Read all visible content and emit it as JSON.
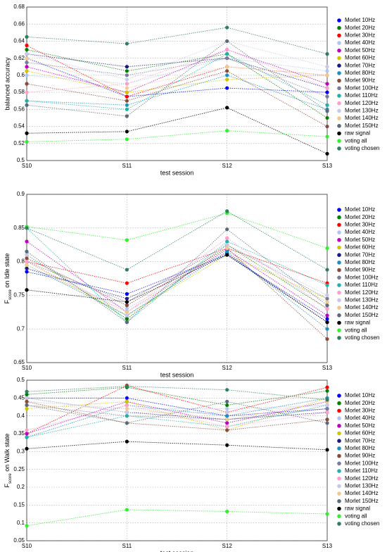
{
  "chart_data": [
    {
      "type": "line",
      "xlabel": "test session",
      "ylabel": "balanced accuracy",
      "grid": true,
      "legend": "outside right",
      "categories": [
        "S10",
        "S11",
        "S12",
        "S13"
      ],
      "ylim": [
        0.5,
        0.68
      ],
      "yticks": [
        0.5,
        0.52,
        0.54,
        0.56,
        0.58,
        0.6,
        0.62,
        0.64,
        0.66,
        0.68
      ],
      "series": [
        {
          "name": "Morlet 10Hz",
          "color": "#0000ff",
          "values": [
            0.62,
            0.575,
            0.585,
            0.58
          ]
        },
        {
          "name": "Morlet 20Hz",
          "color": "#007f00",
          "values": [
            0.63,
            0.605,
            0.625,
            0.55
          ]
        },
        {
          "name": "Morlet 30Hz",
          "color": "#ff0000",
          "values": [
            0.635,
            0.575,
            0.61,
            0.6
          ]
        },
        {
          "name": "Morlet 40Hz",
          "color": "#b0c4ee",
          "values": [
            0.6,
            0.59,
            0.62,
            0.605
          ]
        },
        {
          "name": "Morlet 50Hz",
          "color": "#bf00bf",
          "values": [
            0.61,
            0.58,
            0.63,
            0.59
          ]
        },
        {
          "name": "Morlet 60Hz",
          "color": "#d4c400",
          "values": [
            0.605,
            0.58,
            0.595,
            0.6
          ]
        },
        {
          "name": "Morlet 70Hz",
          "color": "#1a1a80",
          "values": [
            0.625,
            0.61,
            0.62,
            0.585
          ]
        },
        {
          "name": "Morlet 80Hz",
          "color": "#1f8fbf",
          "values": [
            0.57,
            0.565,
            0.6,
            0.56
          ]
        },
        {
          "name": "Morlet 90Hz",
          "color": "#8b4a3a",
          "values": [
            0.59,
            0.57,
            0.605,
            0.54
          ]
        },
        {
          "name": "Morlet 100Hz",
          "color": "#7a7a9a",
          "values": [
            0.615,
            0.6,
            0.62,
            0.575
          ]
        },
        {
          "name": "Morlet 110Hz",
          "color": "#20b2aa",
          "values": [
            0.57,
            0.56,
            0.625,
            0.565
          ]
        },
        {
          "name": "Morlet 120Hz",
          "color": "#ff9ecd",
          "values": [
            0.58,
            0.59,
            0.63,
            0.585
          ]
        },
        {
          "name": "Morlet 130Hz",
          "color": "#c8c8e8",
          "values": [
            0.625,
            0.595,
            0.64,
            0.61
          ]
        },
        {
          "name": "Morlet 140Hz",
          "color": "#f0c890",
          "values": [
            0.62,
            0.585,
            0.61,
            0.6
          ]
        },
        {
          "name": "Morlet 150Hz",
          "color": "#5a6a7a",
          "values": [
            0.565,
            0.552,
            0.64,
            0.558
          ]
        },
        {
          "name": "raw signal",
          "color": "#000000",
          "values": [
            0.532,
            0.534,
            0.562,
            0.508
          ]
        },
        {
          "name": "voting all",
          "color": "#33ee33",
          "values": [
            0.522,
            0.525,
            0.535,
            0.528
          ]
        },
        {
          "name": "voting chosen",
          "color": "#2f7f5f",
          "values": [
            0.645,
            0.637,
            0.656,
            0.625
          ]
        }
      ]
    },
    {
      "type": "line",
      "xlabel": "test session",
      "ylabel": {
        "main": "F",
        "subscript": "score",
        "rest": " on Idle state"
      },
      "grid": true,
      "legend": "outside right",
      "categories": [
        "S10",
        "S11",
        "S12",
        "S13"
      ],
      "ylim": [
        0.65,
        0.9
      ],
      "yticks": [
        0.65,
        0.7,
        0.75,
        0.8,
        0.85,
        0.9
      ],
      "series": [
        {
          "name": "Morlet 10Hz",
          "color": "#0000ff",
          "values": [
            0.785,
            0.752,
            0.81,
            0.715
          ]
        },
        {
          "name": "Morlet 20Hz",
          "color": "#007f00",
          "values": [
            0.81,
            0.715,
            0.825,
            0.73
          ]
        },
        {
          "name": "Morlet 30Hz",
          "color": "#ff0000",
          "values": [
            0.8,
            0.768,
            0.82,
            0.768
          ]
        },
        {
          "name": "Morlet 40Hz",
          "color": "#b0c4ee",
          "values": [
            0.79,
            0.73,
            0.815,
            0.74
          ]
        },
        {
          "name": "Morlet 50Hz",
          "color": "#bf00bf",
          "values": [
            0.83,
            0.725,
            0.818,
            0.72
          ]
        },
        {
          "name": "Morlet 60Hz",
          "color": "#d4c400",
          "values": [
            0.8,
            0.72,
            0.81,
            0.745
          ]
        },
        {
          "name": "Morlet 70Hz",
          "color": "#1a1a80",
          "values": [
            0.79,
            0.745,
            0.812,
            0.71
          ]
        },
        {
          "name": "Morlet 80Hz",
          "color": "#1f8fbf",
          "values": [
            0.795,
            0.72,
            0.815,
            0.7
          ]
        },
        {
          "name": "Morlet 90Hz",
          "color": "#8b4a3a",
          "values": [
            0.805,
            0.735,
            0.82,
            0.685
          ]
        },
        {
          "name": "Morlet 100Hz",
          "color": "#7a7a9a",
          "values": [
            0.8,
            0.74,
            0.825,
            0.745
          ]
        },
        {
          "name": "Morlet 110Hz",
          "color": "#20b2aa",
          "values": [
            0.85,
            0.71,
            0.83,
            0.765
          ]
        },
        {
          "name": "Morlet 120Hz",
          "color": "#ff9ecd",
          "values": [
            0.8,
            0.725,
            0.835,
            0.73
          ]
        },
        {
          "name": "Morlet 130Hz",
          "color": "#c8c8e8",
          "values": [
            0.81,
            0.72,
            0.825,
            0.75
          ]
        },
        {
          "name": "Morlet 140Hz",
          "color": "#f0c890",
          "values": [
            0.795,
            0.725,
            0.82,
            0.74
          ]
        },
        {
          "name": "Morlet 150Hz",
          "color": "#5a6a7a",
          "values": [
            0.815,
            0.71,
            0.848,
            0.735
          ]
        },
        {
          "name": "raw signal",
          "color": "#000000",
          "values": [
            0.758,
            0.74,
            0.81,
            0.71
          ]
        },
        {
          "name": "voting all",
          "color": "#33ee33",
          "values": [
            0.852,
            0.832,
            0.872,
            0.82
          ]
        },
        {
          "name": "voting chosen",
          "color": "#2f7f5f",
          "values": [
            0.85,
            0.788,
            0.875,
            0.788
          ]
        }
      ]
    },
    {
      "type": "line",
      "xlabel": "test session",
      "ylabel": {
        "main": "F",
        "subscript": "score",
        "rest": " on Walk state"
      },
      "grid": true,
      "legend": "outside right",
      "categories": [
        "S10",
        "S11",
        "S12",
        "S13"
      ],
      "ylim": [
        0.05,
        0.5
      ],
      "yticks": [
        0.05,
        0.1,
        0.15,
        0.2,
        0.25,
        0.3,
        0.35,
        0.4,
        0.45,
        0.5
      ],
      "series": [
        {
          "name": "Morlet 10Hz",
          "color": "#0000ff",
          "values": [
            0.45,
            0.45,
            0.4,
            0.42
          ]
        },
        {
          "name": "Morlet 20Hz",
          "color": "#007f00",
          "values": [
            0.46,
            0.48,
            0.43,
            0.47
          ]
        },
        {
          "name": "Morlet 30Hz",
          "color": "#ff0000",
          "values": [
            0.35,
            0.485,
            0.41,
            0.48
          ]
        },
        {
          "name": "Morlet 40Hz",
          "color": "#b0c4ee",
          "values": [
            0.44,
            0.42,
            0.42,
            0.43
          ]
        },
        {
          "name": "Morlet 50Hz",
          "color": "#bf00bf",
          "values": [
            0.35,
            0.44,
            0.38,
            0.44
          ]
        },
        {
          "name": "Morlet 60Hz",
          "color": "#d4c400",
          "values": [
            0.42,
            0.44,
            0.36,
            0.45
          ]
        },
        {
          "name": "Morlet 70Hz",
          "color": "#1a1a80",
          "values": [
            0.45,
            0.41,
            0.39,
            0.41
          ]
        },
        {
          "name": "Morlet 80Hz",
          "color": "#1f8fbf",
          "values": [
            0.34,
            0.43,
            0.4,
            0.45
          ]
        },
        {
          "name": "Morlet 90Hz",
          "color": "#8b4a3a",
          "values": [
            0.44,
            0.38,
            0.36,
            0.39
          ]
        },
        {
          "name": "Morlet 100Hz",
          "color": "#7a7a9a",
          "values": [
            0.43,
            0.4,
            0.39,
            0.42
          ]
        },
        {
          "name": "Morlet 110Hz",
          "color": "#20b2aa",
          "values": [
            0.34,
            0.4,
            0.37,
            0.43
          ]
        },
        {
          "name": "Morlet 120Hz",
          "color": "#ff9ecd",
          "values": [
            0.36,
            0.43,
            0.37,
            0.41
          ]
        },
        {
          "name": "Morlet 130Hz",
          "color": "#c8c8e8",
          "values": [
            0.45,
            0.41,
            0.41,
            0.43
          ]
        },
        {
          "name": "Morlet 140Hz",
          "color": "#f0c890",
          "values": [
            0.43,
            0.42,
            0.39,
            0.44
          ]
        },
        {
          "name": "Morlet 150Hz",
          "color": "#5a6a7a",
          "values": [
            0.43,
            0.38,
            0.44,
            0.38
          ]
        },
        {
          "name": "raw signal",
          "color": "#000000",
          "values": [
            0.308,
            0.328,
            0.318,
            0.305
          ]
        },
        {
          "name": "voting all",
          "color": "#33ee33",
          "values": [
            0.092,
            0.137,
            0.132,
            0.125
          ]
        },
        {
          "name": "voting chosen",
          "color": "#2f7f5f",
          "values": [
            0.468,
            0.483,
            0.473,
            0.445
          ]
        }
      ]
    }
  ]
}
